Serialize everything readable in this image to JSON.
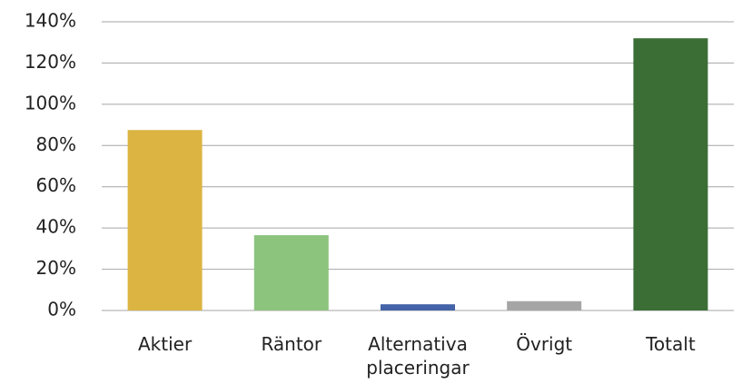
{
  "chart_data": {
    "type": "bar",
    "categories": [
      "Aktier",
      "Räntor",
      "Alternativa placeringar",
      "Övrigt",
      "Totalt"
    ],
    "values": [
      87.5,
      36.5,
      3,
      4.5,
      132
    ],
    "colors": [
      "#dbb441",
      "#8cc47e",
      "#4463a8",
      "#a5a5a5",
      "#3a6e35"
    ],
    "ylim": [
      0,
      140
    ],
    "yticks": [
      {
        "value": 0,
        "label": "0%"
      },
      {
        "value": 20,
        "label": "20%"
      },
      {
        "value": 40,
        "label": "40%"
      },
      {
        "value": 60,
        "label": "60%"
      },
      {
        "value": 80,
        "label": "80%"
      },
      {
        "value": 100,
        "label": "100%"
      },
      {
        "value": 120,
        "label": "120%"
      },
      {
        "value": 140,
        "label": "140%"
      }
    ],
    "grid": true
  }
}
